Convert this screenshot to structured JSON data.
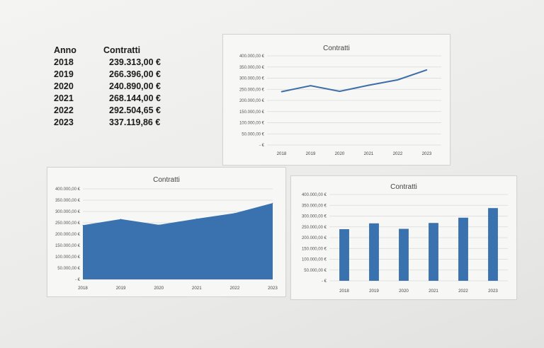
{
  "table": {
    "header_year": "Anno",
    "header_value": "Contratti",
    "rows": [
      {
        "year": "2018",
        "value": "239.313,00 €"
      },
      {
        "year": "2019",
        "value": "266.396,00 €"
      },
      {
        "year": "2020",
        "value": "240.890,00 €"
      },
      {
        "year": "2021",
        "value": "268.144,00 €"
      },
      {
        "year": "2022",
        "value": "292.504,65 €"
      },
      {
        "year": "2023",
        "value": "337.119,86 €"
      }
    ]
  },
  "chart_data": [
    {
      "type": "line",
      "title": "Contratti",
      "categories": [
        "2018",
        "2019",
        "2020",
        "2021",
        "2022",
        "2023"
      ],
      "values": [
        239313.0,
        266396.0,
        240890.0,
        268144.0,
        292504.65,
        337119.86
      ],
      "ylim": [
        0,
        400000
      ],
      "yticks": [
        "400.000,00 €",
        "350.000,00 €",
        "300.000,00 €",
        "250.000,00 €",
        "200.000,00 €",
        "150.000,00 €",
        "100.000,00 €",
        "50.000,00 €",
        "-   €"
      ],
      "grid": true,
      "color": "#3d6ea8"
    },
    {
      "type": "area",
      "title": "Contratti",
      "categories": [
        "2018",
        "2019",
        "2020",
        "2021",
        "2022",
        "2023"
      ],
      "values": [
        239313.0,
        266396.0,
        240890.0,
        268144.0,
        292504.65,
        337119.86
      ],
      "ylim": [
        0,
        400000
      ],
      "yticks": [
        "400.000,00 €",
        "350.000,00 €",
        "300.000,00 €",
        "250.000,00 €",
        "200.000,00 €",
        "150.000,00 €",
        "100.000,00 €",
        "50.000,00 €",
        "-   €"
      ],
      "grid": true,
      "color": "#3a72b0"
    },
    {
      "type": "bar",
      "title": "Contratti",
      "categories": [
        "2018",
        "2019",
        "2020",
        "2021",
        "2022",
        "2023"
      ],
      "values": [
        239313.0,
        266396.0,
        240890.0,
        268144.0,
        292504.65,
        337119.86
      ],
      "ylim": [
        0,
        400000
      ],
      "yticks": [
        "400.000,00 €",
        "350.000,00 €",
        "300.000,00 €",
        "250.000,00 €",
        "200.000,00 €",
        "150.000,00 €",
        "100.000,00 €",
        "50.000,00 €",
        "-   €"
      ],
      "grid": true,
      "color": "#3a72b0"
    }
  ]
}
